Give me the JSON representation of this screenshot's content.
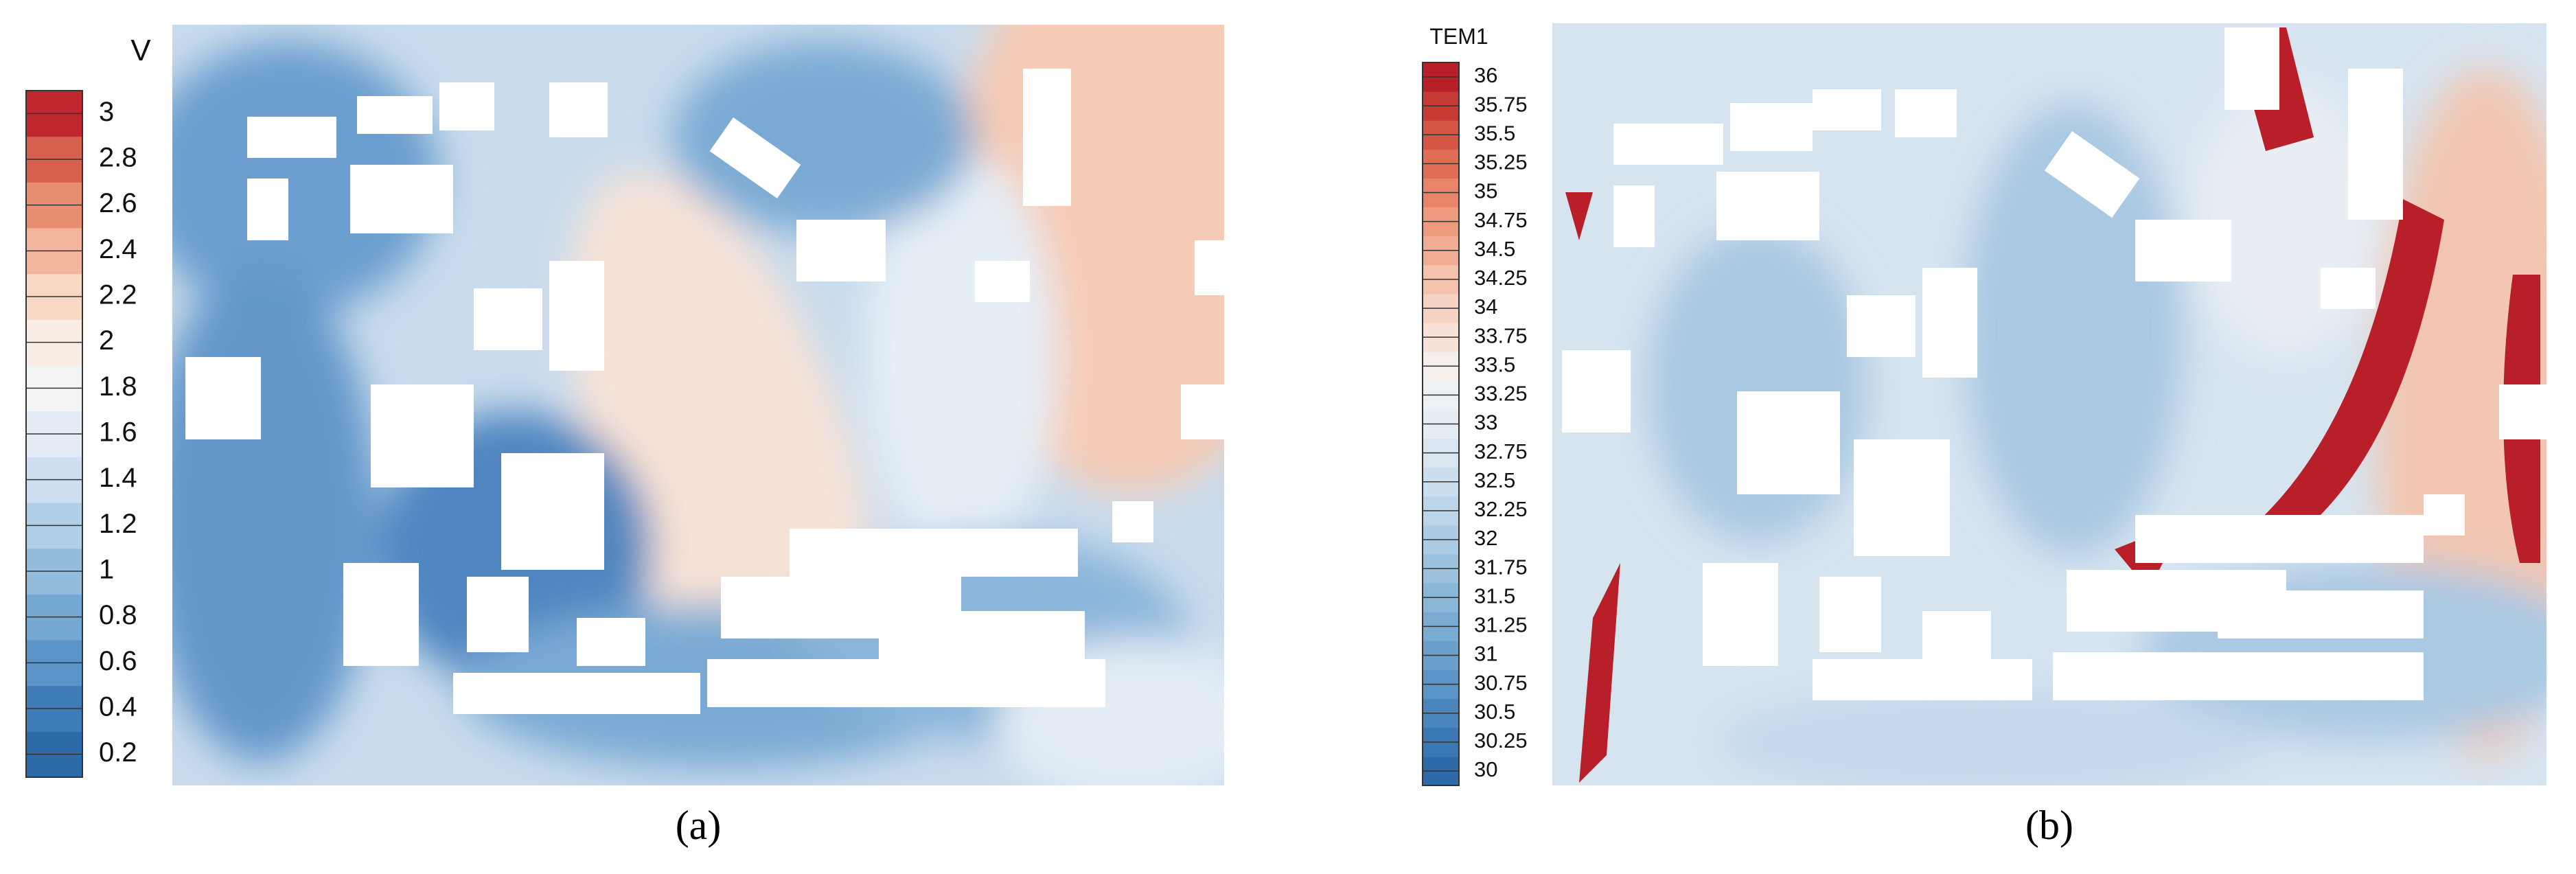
{
  "chart_data": [
    {
      "type": "contour",
      "colorbar_title": "V",
      "caption": "(a)",
      "clim": [
        0.1,
        3.1
      ],
      "ticks": [
        3,
        2.8,
        2.6,
        2.4,
        2.2,
        2,
        1.8,
        1.6,
        1.4,
        1.2,
        1,
        0.8,
        0.6,
        0.4,
        0.2
      ],
      "colors": [
        "#2f6aa8",
        "#3e7bb7",
        "#5a93c6",
        "#75a8d2",
        "#93bcdd",
        "#b1cfe6",
        "#cddff0",
        "#e3ecf5",
        "#f2f4f6",
        "#f9ece4",
        "#f8d7c5",
        "#f3b79d",
        "#e88e71",
        "#d8604f",
        "#c1272f"
      ]
    },
    {
      "type": "contour",
      "colorbar_title": "TEM1",
      "caption": "(b)",
      "clim": [
        29.875,
        36.125
      ],
      "ticks": [
        36,
        35.75,
        35.5,
        35.25,
        35,
        34.75,
        34.5,
        34.25,
        34,
        33.75,
        33.5,
        33.25,
        33,
        32.75,
        32.5,
        32.25,
        32,
        31.75,
        31.5,
        31.25,
        31,
        30.75,
        30.5,
        30.25,
        30
      ],
      "colors": [
        "#2c6aa9",
        "#3a78b4",
        "#4a86bd",
        "#5a93c5",
        "#6a9fcc",
        "#7aabd2",
        "#8ab6d8",
        "#9bc1de",
        "#accbe4",
        "#bcd5e9",
        "#cbdeee",
        "#d9e6f2",
        "#e5edf5",
        "#eef1f4",
        "#f5efec",
        "#f8e2d8",
        "#f7d3c3",
        "#f5c2ad",
        "#f2ae95",
        "#ee9a7e",
        "#e88468",
        "#e06d55",
        "#d55443",
        "#c83a34",
        "#b81f29"
      ]
    }
  ]
}
